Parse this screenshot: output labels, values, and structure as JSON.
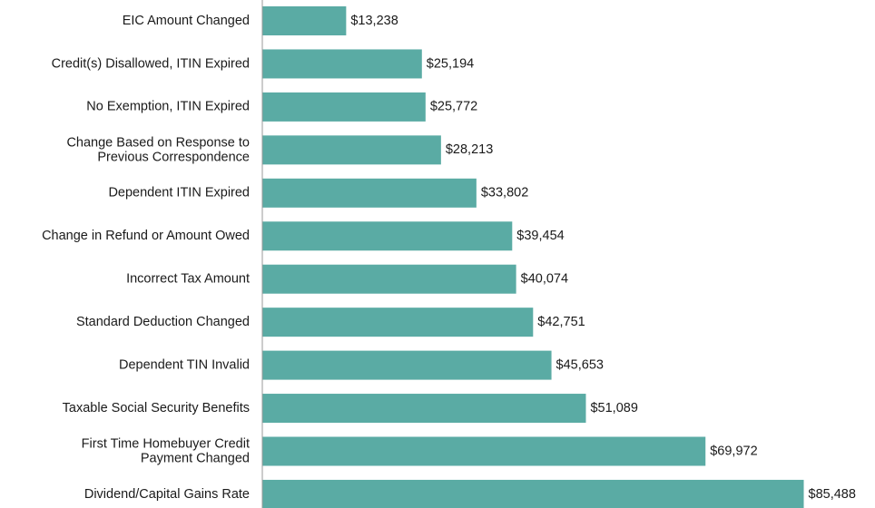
{
  "chart_data": {
    "type": "bar",
    "orientation": "horizontal",
    "categories": [
      "EIC Amount Changed",
      "Credit(s) Disallowed, ITIN Expired",
      "No Exemption, ITIN Expired",
      "Change Based on Response to\nPrevious Correspondence",
      "Dependent ITIN Expired",
      "Change in Refund or Amount Owed",
      "Incorrect Tax Amount",
      "Standard Deduction Changed",
      "Dependent TIN Invalid",
      "Taxable Social Security Benefits",
      "First Time Homebuyer Credit\nPayment Changed",
      "Dividend/Capital Gains Rate"
    ],
    "values": [
      13238,
      25194,
      25772,
      28213,
      33802,
      39454,
      40074,
      42751,
      45653,
      51089,
      69972,
      85488
    ],
    "value_labels": [
      "$13,238",
      "$25,194",
      "$25,772",
      "$28,213",
      "$33,802",
      "$39,454",
      "$40,074",
      "$42,751",
      "$45,653",
      "$51,089",
      "$69,972",
      "$85,488"
    ],
    "color": "#5aaba4",
    "xlim": [
      0,
      90000
    ]
  }
}
